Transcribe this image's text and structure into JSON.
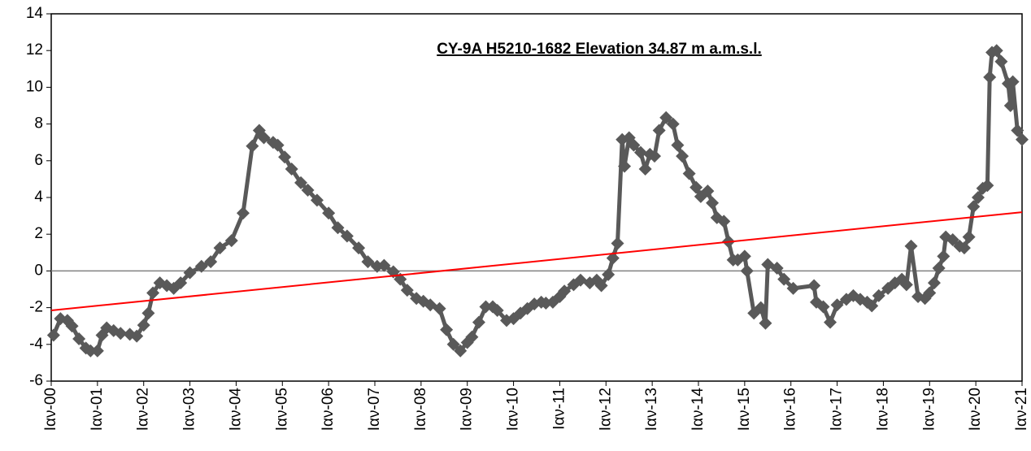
{
  "chart_data": {
    "type": "line",
    "title": "CY-9A H5210-1682  Elevation 34.87 m a.m.s.l.",
    "xlim": [
      2000,
      2021
    ],
    "xticks": [
      {
        "value": 2000,
        "label": "Ιαν-00"
      },
      {
        "value": 2001,
        "label": "Ιαν-01"
      },
      {
        "value": 2002,
        "label": "Ιαν-02"
      },
      {
        "value": 2003,
        "label": "Ιαν-03"
      },
      {
        "value": 2004,
        "label": "Ιαν-04"
      },
      {
        "value": 2005,
        "label": "Ιαν-05"
      },
      {
        "value": 2006,
        "label": "Ιαν-06"
      },
      {
        "value": 2007,
        "label": "Ιαν-07"
      },
      {
        "value": 2008,
        "label": "Ιαν-08"
      },
      {
        "value": 2009,
        "label": "Ιαν-09"
      },
      {
        "value": 2010,
        "label": "Ιαν-10"
      },
      {
        "value": 2011,
        "label": "Ιαν-11"
      },
      {
        "value": 2012,
        "label": "Ιαν-12"
      },
      {
        "value": 2013,
        "label": "Ιαν-13"
      },
      {
        "value": 2014,
        "label": "Ιαν-14"
      },
      {
        "value": 2015,
        "label": "Ιαν-15"
      },
      {
        "value": 2016,
        "label": "Ιαν-16"
      },
      {
        "value": 2017,
        "label": "Ιαν-17"
      },
      {
        "value": 2018,
        "label": "Ιαν-18"
      },
      {
        "value": 2019,
        "label": "Ιαν-19"
      },
      {
        "value": 2020,
        "label": "Ιαν-20"
      },
      {
        "value": 2021,
        "label": "Ιαν-21"
      }
    ],
    "ylim": [
      -6,
      14
    ],
    "yticks": [
      -6,
      -4,
      -2,
      0,
      2,
      4,
      6,
      8,
      10,
      12,
      14
    ],
    "zero_line": true,
    "series": [
      {
        "color": "#595959",
        "marker": "diamond",
        "x": [
          2000.05,
          2000.2,
          2000.35,
          2000.45,
          2000.6,
          2000.75,
          2000.85,
          2001.0,
          2001.1,
          2001.2,
          2001.35,
          2001.5,
          2001.7,
          2001.85,
          2002.0,
          2002.1,
          2002.2,
          2002.35,
          2002.5,
          2002.65,
          2002.8,
          2003.0,
          2003.25,
          2003.45,
          2003.65,
          2003.9,
          2004.15,
          2004.35,
          2004.5,
          2004.6,
          2004.8,
          2004.9,
          2005.05,
          2005.2,
          2005.4,
          2005.55,
          2005.75,
          2006.0,
          2006.2,
          2006.4,
          2006.65,
          2006.85,
          2007.05,
          2007.2,
          2007.4,
          2007.55,
          2007.7,
          2007.9,
          2008.05,
          2008.2,
          2008.4,
          2008.55,
          2008.7,
          2008.85,
          2009.0,
          2009.1,
          2009.25,
          2009.4,
          2009.55,
          2009.65,
          2009.85,
          2010.0,
          2010.15,
          2010.3,
          2010.45,
          2010.6,
          2010.7,
          2010.85,
          2011.0,
          2011.1,
          2011.3,
          2011.45,
          2011.65,
          2011.8,
          2011.9,
          2012.05,
          2012.15,
          2012.25,
          2012.35,
          2012.4,
          2012.5,
          2012.6,
          2012.75,
          2012.85,
          2012.95,
          2013.05,
          2013.15,
          2013.3,
          2013.45,
          2013.55,
          2013.65,
          2013.8,
          2013.95,
          2014.05,
          2014.2,
          2014.3,
          2014.4,
          2014.55,
          2014.65,
          2014.75,
          2014.85,
          2015.0,
          2015.05,
          2015.2,
          2015.35,
          2015.45,
          2015.5,
          2015.7,
          2015.85,
          2016.05,
          2016.5,
          2016.55,
          2016.7,
          2016.85,
          2017.0,
          2017.2,
          2017.35,
          2017.5,
          2017.65,
          2017.75,
          2017.9,
          2018.1,
          2018.25,
          2018.4,
          2018.5,
          2018.6,
          2018.75,
          2018.9,
          2019.0,
          2019.1,
          2019.2,
          2019.3,
          2019.35,
          2019.5,
          2019.65,
          2019.75,
          2019.85,
          2019.95,
          2020.05,
          2020.15,
          2020.25,
          2020.3,
          2020.35,
          2020.45,
          2020.55,
          2020.7,
          2020.75,
          2020.8,
          2020.9,
          2021.0
        ],
        "values": [
          -3.5,
          -2.6,
          -2.7,
          -3.0,
          -3.7,
          -4.2,
          -4.35,
          -4.35,
          -3.5,
          -3.1,
          -3.25,
          -3.4,
          -3.45,
          -3.55,
          -2.95,
          -2.3,
          -1.2,
          -0.65,
          -0.8,
          -0.95,
          -0.65,
          -0.1,
          0.25,
          0.5,
          1.25,
          1.65,
          3.15,
          6.8,
          7.65,
          7.25,
          7.0,
          6.85,
          6.2,
          5.55,
          4.8,
          4.4,
          3.85,
          3.15,
          2.35,
          1.9,
          1.25,
          0.5,
          0.25,
          0.3,
          -0.05,
          -0.45,
          -1.05,
          -1.5,
          -1.65,
          -1.85,
          -2.05,
          -3.2,
          -4.0,
          -4.35,
          -3.9,
          -3.6,
          -2.8,
          -1.95,
          -1.95,
          -2.15,
          -2.7,
          -2.6,
          -2.3,
          -2.05,
          -1.8,
          -1.7,
          -1.75,
          -1.7,
          -1.4,
          -1.1,
          -0.75,
          -0.5,
          -0.65,
          -0.5,
          -0.8,
          -0.2,
          0.7,
          1.5,
          7.15,
          5.7,
          7.25,
          6.85,
          6.45,
          5.55,
          6.35,
          6.25,
          7.65,
          8.35,
          8.0,
          6.85,
          6.25,
          5.3,
          4.55,
          4.05,
          4.35,
          3.7,
          2.9,
          2.7,
          1.6,
          0.6,
          0.6,
          0.8,
          0.0,
          -2.3,
          -2.0,
          -2.85,
          0.35,
          0.15,
          -0.45,
          -0.95,
          -0.8,
          -1.7,
          -1.95,
          -2.8,
          -1.85,
          -1.55,
          -1.35,
          -1.55,
          -1.7,
          -1.9,
          -1.35,
          -0.95,
          -0.65,
          -0.45,
          -0.75,
          1.35,
          -1.4,
          -1.5,
          -1.2,
          -0.65,
          0.15,
          0.8,
          1.85,
          1.7,
          1.35,
          1.25,
          1.85,
          3.5,
          4.0,
          4.5,
          4.65,
          10.55,
          11.9,
          12.0,
          11.4,
          10.2,
          9.0,
          10.3,
          7.65,
          7.15
        ]
      },
      {
        "color": "#ff0000",
        "marker": "none",
        "x": [
          2000,
          2021
        ],
        "values": [
          -2.15,
          3.2
        ]
      }
    ]
  }
}
